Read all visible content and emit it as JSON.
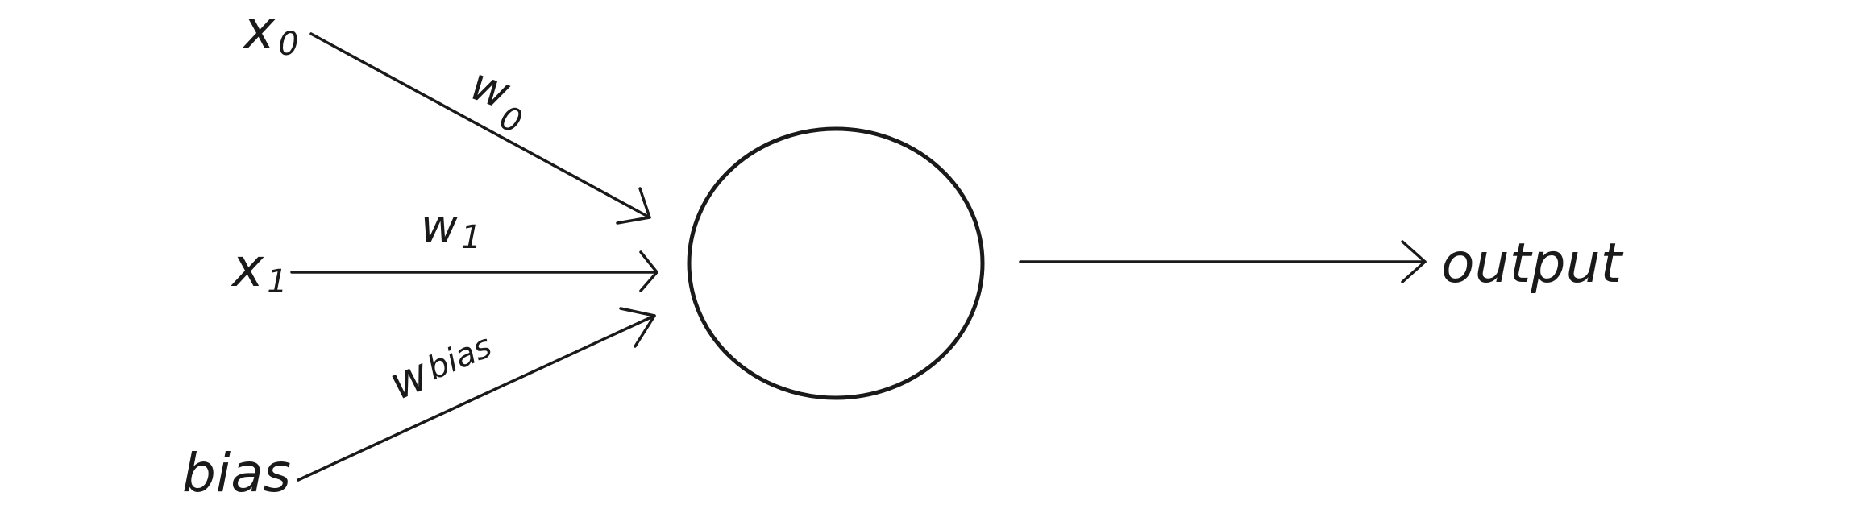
{
  "inputs": [
    {
      "name": "x",
      "sub": "0"
    },
    {
      "name": "x",
      "sub": "1"
    },
    {
      "name": "bias"
    }
  ],
  "weights": [
    {
      "name": "w",
      "sub": "0"
    },
    {
      "name": "w",
      "sub": "1"
    },
    {
      "name": "w",
      "sub": "bias"
    }
  ],
  "output": {
    "label": "output"
  }
}
